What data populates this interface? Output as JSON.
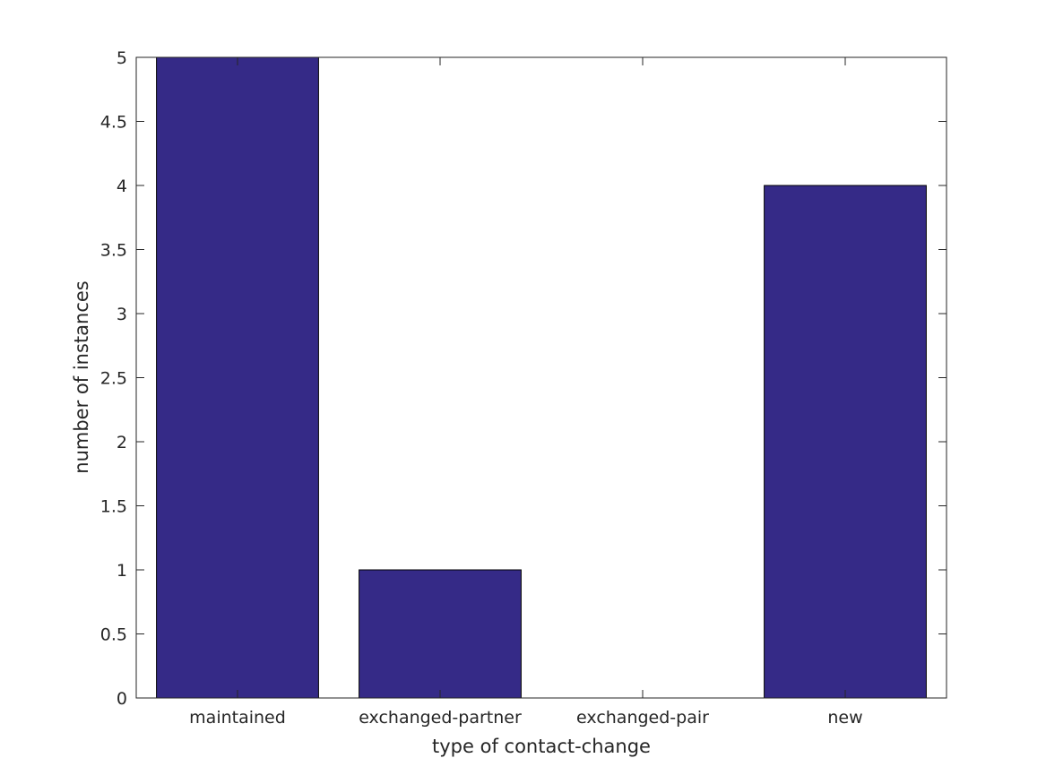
{
  "chart_data": {
    "type": "bar",
    "categories": [
      "maintained",
      "exchanged-partner",
      "exchanged-pair",
      "new"
    ],
    "values": [
      5,
      1,
      0,
      4
    ],
    "title": "",
    "xlabel": "type of contact-change",
    "ylabel": "number of instances",
    "ylim": [
      0,
      5
    ],
    "yticks": [
      0,
      0.5,
      1,
      1.5,
      2,
      2.5,
      3,
      3.5,
      4,
      4.5,
      5
    ],
    "ytick_labels": [
      "0",
      "0.5",
      "1",
      "1.5",
      "2",
      "2.5",
      "3",
      "3.5",
      "4",
      "4.5",
      "5"
    ],
    "grid": false,
    "box": true,
    "bar_color": "#352a87",
    "edge_color": "#000000"
  }
}
